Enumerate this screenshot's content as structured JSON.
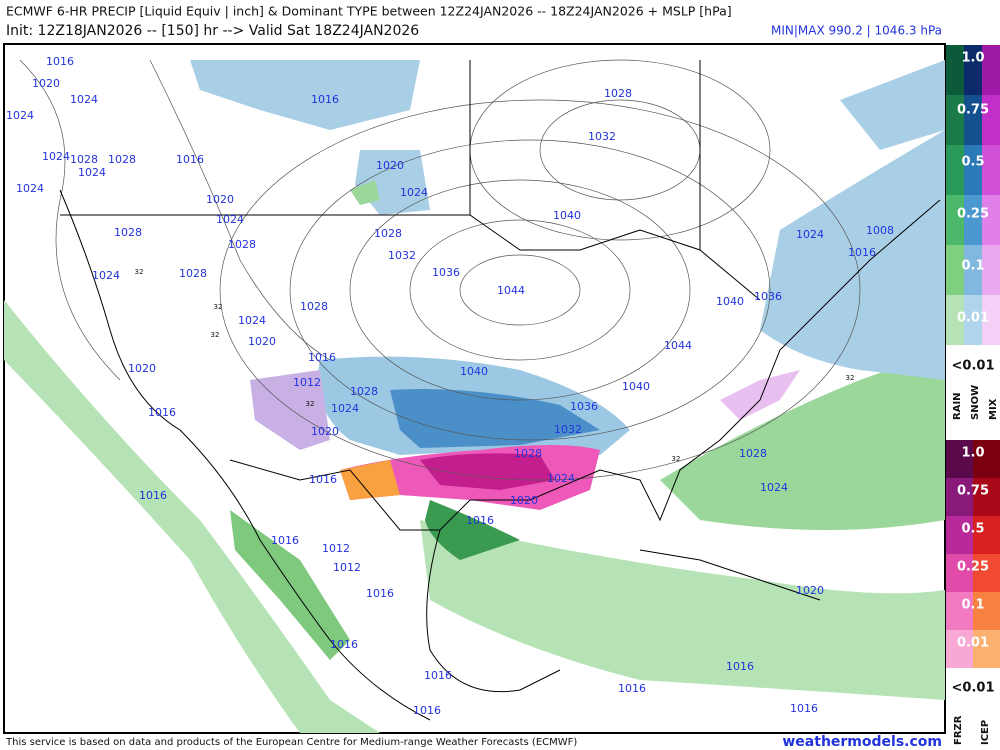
{
  "header": {
    "title": "ECMWF 6-HR PRECIP [Liquid Equiv | inch] & Dominant TYPE between 12Z24JAN2026 -- 18Z24JAN2026 + MSLP [hPa]",
    "subtitle": "Init: 12Z18JAN2026 -- [150] hr --> Valid Sat 18Z24JAN2026",
    "minmax": "MIN|MAX 990.2 | 1046.3 hPa"
  },
  "legend": {
    "levels": [
      "1.0",
      "0.75",
      "0.5",
      "0.25",
      "0.1",
      "0.01"
    ],
    "below": "<0.01",
    "types": [
      "RAIN",
      "SNOW",
      "MIX"
    ]
  },
  "ice_legend": {
    "levels": [
      "1.0",
      "0.75",
      "0.5",
      "0.25",
      "0.1",
      "0.01"
    ],
    "below": "<0.01",
    "types": [
      "FRZR",
      "ICEP"
    ]
  },
  "isobar_labels": [
    "1016",
    "1020",
    "1024",
    "1024",
    "1024",
    "1028",
    "1024",
    "1028",
    "1016",
    "1024",
    "1020",
    "1024",
    "1016",
    "1020",
    "1024",
    "1028",
    "1032",
    "1040",
    "1028",
    "1028",
    "1028",
    "1032",
    "1036",
    "1024",
    "1028",
    "1044",
    "1028",
    "1024",
    "1020",
    "1016",
    "1012",
    "1028",
    "1040",
    "1040",
    "1044",
    "1040",
    "1036",
    "1024",
    "1008",
    "1016",
    "1020",
    "1016",
    "1024",
    "1020",
    "1036",
    "1032",
    "1028",
    "1024",
    "1020",
    "1016",
    "1016",
    "1016",
    "1028",
    "1024",
    "1016",
    "1012",
    "1012",
    "1016",
    "1016",
    "1016",
    "1016",
    "1016",
    "1016",
    "1020",
    "1016"
  ],
  "freezing_labels": [
    "32",
    "32",
    "32",
    "32",
    "32",
    "32"
  ],
  "footer": {
    "credit": "This service is based on data and products of the European Centre for Medium-range Weather Forecasts (ECMWF)",
    "site": "weathermodels.com"
  }
}
